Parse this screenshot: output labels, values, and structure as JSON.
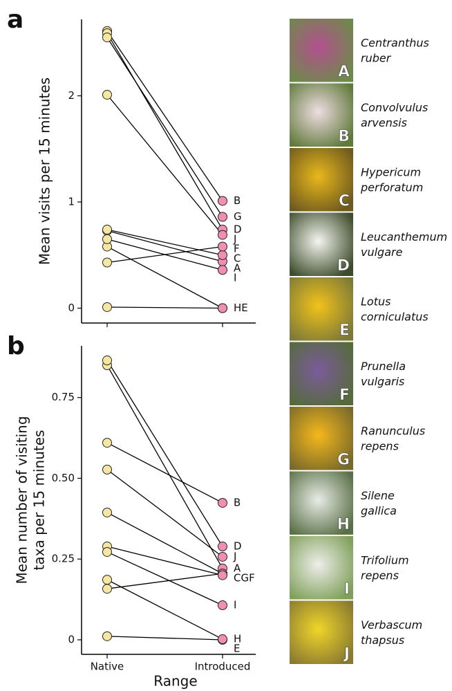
{
  "chart_data": [
    {
      "type": "slope",
      "panel": "a",
      "ylabel": "Mean visits per 15 minutes",
      "ylim": [
        -0.14,
        2.72
      ],
      "yticks": [
        0,
        1,
        2
      ],
      "native_color": "#f5e7a1",
      "introduced_color": "#ef8fb3",
      "series": [
        {
          "name": "A",
          "values": [
            0.73,
            0.44
          ]
        },
        {
          "name": "B",
          "values": [
            2.61,
            1.01
          ]
        },
        {
          "name": "C",
          "values": [
            0.74,
            0.5
          ]
        },
        {
          "name": "D",
          "values": [
            2.59,
            0.74
          ]
        },
        {
          "name": "E",
          "values": [
            0.01,
            0
          ]
        },
        {
          "name": "F",
          "values": [
            0.43,
            0.58
          ]
        },
        {
          "name": "G",
          "values": [
            2.55,
            0.86
          ]
        },
        {
          "name": "H",
          "values": [
            0.58,
            0
          ]
        },
        {
          "name": "I",
          "values": [
            0.65,
            0.36
          ]
        },
        {
          "name": "J",
          "values": [
            2.01,
            0.69
          ]
        }
      ],
      "point_labels": [
        "B",
        "G",
        "D",
        "J",
        "F",
        "C",
        "A",
        "I",
        "HE"
      ]
    },
    {
      "type": "slope",
      "panel": "b",
      "ylabel": [
        "Mean number of visiting",
        "taxa per 15 minutes"
      ],
      "xlabel": "Range",
      "categories": [
        "Native",
        "Introduced"
      ],
      "ylim": [
        -0.045,
        0.91
      ],
      "yticks": [
        0,
        0.25,
        {
          "value": 0.5,
          "label": "0.50"
        },
        0.75
      ],
      "native_color": "#f5e7a1",
      "introduced_color": "#ef8fb3",
      "series": [
        {
          "name": "A",
          "values": [
            0.85,
            0.221
          ]
        },
        {
          "name": "B",
          "values": [
            0.61,
            0.424
          ]
        },
        {
          "name": "C",
          "values": [
            0.394,
            0.205
          ]
        },
        {
          "name": "D",
          "values": [
            0.865,
            0.289
          ]
        },
        {
          "name": "E",
          "values": [
            0.011,
            0
          ]
        },
        {
          "name": "F",
          "values": [
            0.158,
            0.205
          ]
        },
        {
          "name": "G",
          "values": [
            0.289,
            0.2
          ]
        },
        {
          "name": "H",
          "values": [
            0.186,
            0.002
          ]
        },
        {
          "name": "I",
          "values": [
            0.272,
            0.107
          ]
        },
        {
          "name": "J",
          "values": [
            0.527,
            0.257
          ]
        }
      ],
      "point_labels": [
        "B",
        "D",
        "J",
        "A",
        "CGF",
        "I",
        "H",
        "E"
      ]
    }
  ],
  "species": [
    {
      "letter": "A",
      "name": [
        "Centranthus",
        "ruber"
      ]
    },
    {
      "letter": "B",
      "name": [
        "Convolvulus",
        "arvensis"
      ]
    },
    {
      "letter": "C",
      "name": [
        "Hypericum",
        "perforatum"
      ]
    },
    {
      "letter": "D",
      "name": [
        "Leucanthemum",
        "vulgare"
      ]
    },
    {
      "letter": "E",
      "name": [
        "Lotus",
        "corniculatus"
      ]
    },
    {
      "letter": "F",
      "name": [
        "Prunella",
        "vulgaris"
      ]
    },
    {
      "letter": "G",
      "name": [
        "Ranunculus",
        "repens"
      ]
    },
    {
      "letter": "H",
      "name": [
        "Silene",
        "gallica"
      ]
    },
    {
      "letter": "I",
      "name": [
        "Trifolium",
        "repens"
      ]
    },
    {
      "letter": "J",
      "name": [
        "Verbascum",
        "thapsus"
      ]
    }
  ]
}
